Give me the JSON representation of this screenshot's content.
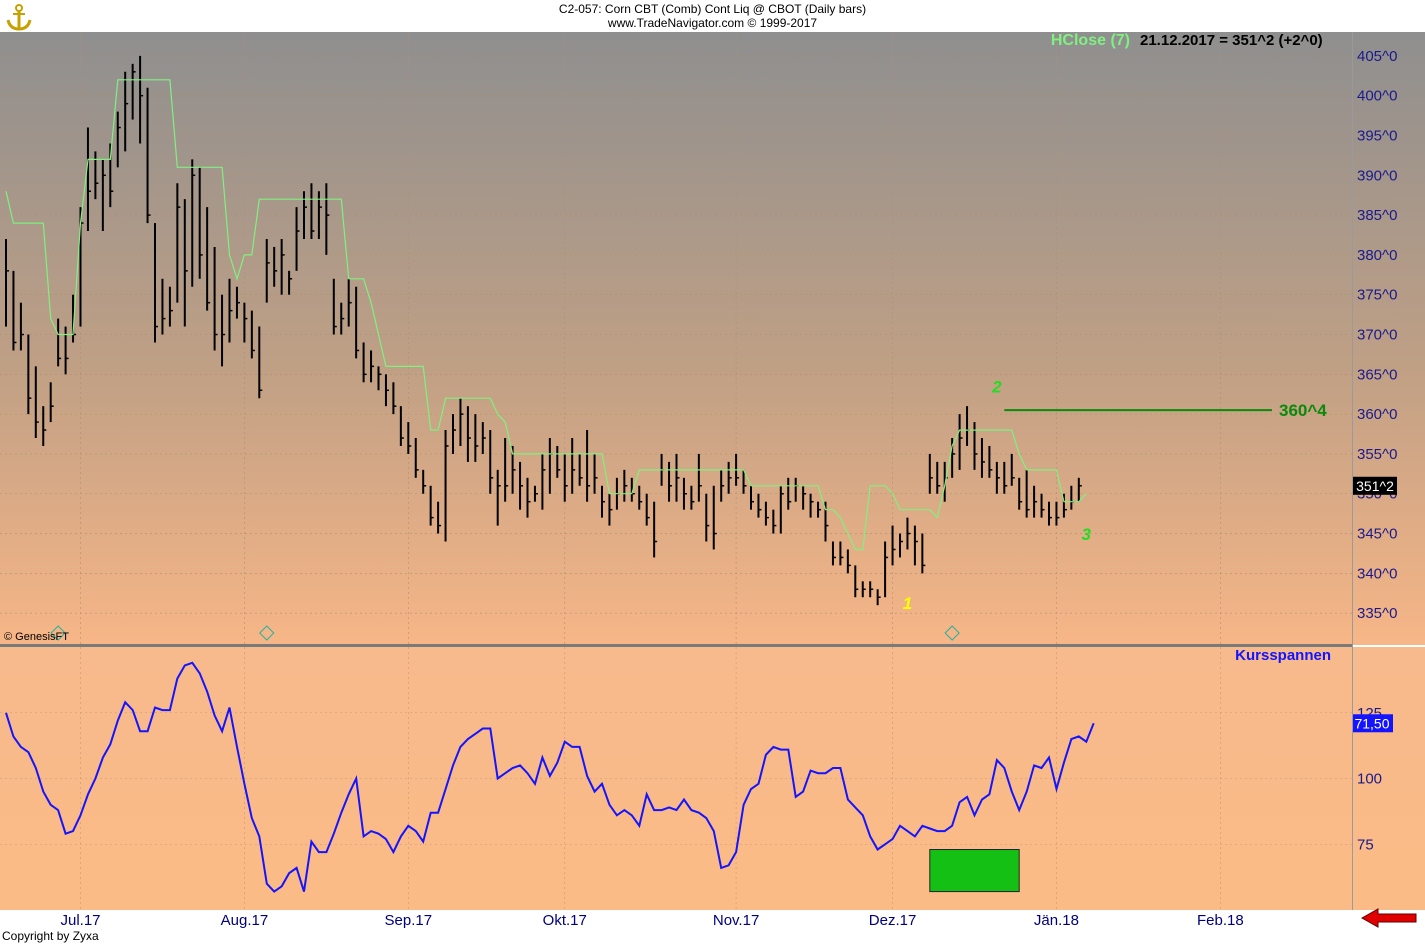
{
  "header": {
    "line1": "C2-057:  Corn CBT (Comb) Cont Liq @ CBOT  (Daily bars)",
    "line2": "www.TradeNavigator.com © 1999-2017"
  },
  "footer": {
    "copyright": "Copyright by Zyxa",
    "genesis": "© GenesisFT"
  },
  "colors": {
    "bar": "#000000",
    "hclose": "#80f080",
    "kurs": "#1414ff",
    "level": "#0a8a0a",
    "axisText": "#1a1a8c",
    "box": "#13c013"
  },
  "chart_data": [
    {
      "type": "ohlc-bar",
      "indicator_label": "HClose (7)",
      "indicator_value": "21.12.2017 = 351^2 (+2^0)",
      "ylim": [
        331,
        408
      ],
      "y_ticks": [
        "335^0",
        "340^0",
        "345^0",
        "350^0",
        "355^0",
        "360^0",
        "365^0",
        "370^0",
        "375^0",
        "380^0",
        "385^0",
        "390^0",
        "395^0",
        "400^0",
        "405^0"
      ],
      "last_price_label": "351^2",
      "level_label": "360^4",
      "level_value": 360.5,
      "level_from_day": 134,
      "wave_labels": [
        {
          "text": "1",
          "day": 121,
          "price": 335.5,
          "color": "#ffff00"
        },
        {
          "text": "2",
          "day": 133,
          "price": 362.7,
          "color": "#22dd22"
        },
        {
          "text": "3",
          "day": 145,
          "price": 344.2,
          "color": "#22dd22"
        }
      ],
      "roll_markers": [
        {
          "day": 7
        },
        {
          "day": 35
        },
        {
          "day": 127
        }
      ],
      "bars": [
        {
          "h": 382,
          "l": 371,
          "c": 378
        },
        {
          "h": 378,
          "l": 368,
          "c": 369
        },
        {
          "h": 374,
          "l": 368,
          "c": 370
        },
        {
          "h": 370,
          "l": 360,
          "c": 362
        },
        {
          "h": 366,
          "l": 357,
          "c": 359
        },
        {
          "h": 361,
          "l": 356,
          "c": 358
        },
        {
          "h": 364,
          "l": 359,
          "c": 361
        },
        {
          "h": 372,
          "l": 366,
          "c": 367
        },
        {
          "h": 371,
          "l": 365,
          "c": 367
        },
        {
          "h": 375,
          "l": 369,
          "c": 370
        },
        {
          "h": 386,
          "l": 371,
          "c": 384
        },
        {
          "h": 396,
          "l": 383,
          "c": 388
        },
        {
          "h": 393,
          "l": 387,
          "c": 389
        },
        {
          "h": 392,
          "l": 383,
          "c": 390
        },
        {
          "h": 394,
          "l": 386,
          "c": 388
        },
        {
          "h": 398,
          "l": 391,
          "c": 396
        },
        {
          "h": 403,
          "l": 393,
          "c": 399
        },
        {
          "h": 404,
          "l": 397,
          "c": 403
        },
        {
          "h": 405,
          "l": 394,
          "c": 400
        },
        {
          "h": 401,
          "l": 384,
          "c": 385
        },
        {
          "h": 384,
          "l": 369,
          "c": 371
        },
        {
          "h": 377,
          "l": 370,
          "c": 372
        },
        {
          "h": 376,
          "l": 371,
          "c": 373
        },
        {
          "h": 389,
          "l": 374,
          "c": 386
        },
        {
          "h": 387,
          "l": 371,
          "c": 378
        },
        {
          "h": 392,
          "l": 376,
          "c": 390
        },
        {
          "h": 391,
          "l": 377,
          "c": 380
        },
        {
          "h": 386,
          "l": 373,
          "c": 374
        },
        {
          "h": 381,
          "l": 368,
          "c": 370
        },
        {
          "h": 375,
          "l": 366,
          "c": 370
        },
        {
          "h": 377,
          "l": 369,
          "c": 373
        },
        {
          "h": 376,
          "l": 372,
          "c": 374
        },
        {
          "h": 374,
          "l": 369,
          "c": 372
        },
        {
          "h": 373,
          "l": 367,
          "c": 368
        },
        {
          "h": 371,
          "l": 362,
          "c": 363
        },
        {
          "h": 382,
          "l": 374,
          "c": 379
        },
        {
          "h": 381,
          "l": 376,
          "c": 378
        },
        {
          "h": 382,
          "l": 375,
          "c": 380
        },
        {
          "h": 378,
          "l": 375,
          "c": 377
        },
        {
          "h": 386,
          "l": 378,
          "c": 383
        },
        {
          "h": 388,
          "l": 382,
          "c": 386
        },
        {
          "h": 389,
          "l": 382,
          "c": 383
        },
        {
          "h": 388,
          "l": 382,
          "c": 386
        },
        {
          "h": 389,
          "l": 380,
          "c": 385
        },
        {
          "h": 377,
          "l": 370,
          "c": 371
        },
        {
          "h": 374,
          "l": 370,
          "c": 372
        },
        {
          "h": 377,
          "l": 371,
          "c": 374
        },
        {
          "h": 376,
          "l": 367,
          "c": 368
        },
        {
          "h": 369,
          "l": 364,
          "c": 365
        },
        {
          "h": 368,
          "l": 364,
          "c": 366
        },
        {
          "h": 366,
          "l": 363,
          "c": 365
        },
        {
          "h": 365,
          "l": 361,
          "c": 363
        },
        {
          "h": 364,
          "l": 360,
          "c": 361
        },
        {
          "h": 361,
          "l": 356,
          "c": 357
        },
        {
          "h": 359,
          "l": 355,
          "c": 356
        },
        {
          "h": 357,
          "l": 352,
          "c": 353
        },
        {
          "h": 353,
          "l": 350,
          "c": 351
        },
        {
          "h": 351,
          "l": 346,
          "c": 347
        },
        {
          "h": 349,
          "l": 345,
          "c": 346
        },
        {
          "h": 358,
          "l": 344,
          "c": 356
        },
        {
          "h": 360,
          "l": 355,
          "c": 358
        },
        {
          "h": 362,
          "l": 356,
          "c": 360
        },
        {
          "h": 361,
          "l": 354,
          "c": 357
        },
        {
          "h": 360,
          "l": 354,
          "c": 356
        },
        {
          "h": 359,
          "l": 355,
          "c": 357
        },
        {
          "h": 358,
          "l": 350,
          "c": 352
        },
        {
          "h": 353,
          "l": 346,
          "c": 351
        },
        {
          "h": 357,
          "l": 349,
          "c": 351
        },
        {
          "h": 356,
          "l": 350,
          "c": 353
        },
        {
          "h": 354,
          "l": 348,
          "c": 351
        },
        {
          "h": 352,
          "l": 347,
          "c": 349
        },
        {
          "h": 351,
          "l": 349,
          "c": 350
        },
        {
          "h": 355,
          "l": 348,
          "c": 353
        },
        {
          "h": 357,
          "l": 350,
          "c": 355
        },
        {
          "h": 356,
          "l": 352,
          "c": 353
        },
        {
          "h": 355,
          "l": 349,
          "c": 351
        },
        {
          "h": 357,
          "l": 350,
          "c": 353
        },
        {
          "h": 355,
          "l": 351,
          "c": 352
        },
        {
          "h": 358,
          "l": 349,
          "c": 351
        },
        {
          "h": 355,
          "l": 350,
          "c": 352
        },
        {
          "h": 351,
          "l": 347,
          "c": 349
        },
        {
          "h": 350,
          "l": 346,
          "c": 348
        },
        {
          "h": 352,
          "l": 348,
          "c": 350
        },
        {
          "h": 353,
          "l": 349,
          "c": 351
        },
        {
          "h": 352,
          "l": 349,
          "c": 350
        },
        {
          "h": 351,
          "l": 348,
          "c": 349
        },
        {
          "h": 350,
          "l": 346,
          "c": 347
        },
        {
          "h": 349,
          "l": 342,
          "c": 344
        },
        {
          "h": 355,
          "l": 351,
          "c": 353
        },
        {
          "h": 354,
          "l": 349,
          "c": 351
        },
        {
          "h": 355,
          "l": 349,
          "c": 352
        },
        {
          "h": 352,
          "l": 348,
          "c": 350
        },
        {
          "h": 351,
          "l": 348,
          "c": 349
        },
        {
          "h": 355,
          "l": 349,
          "c": 351
        },
        {
          "h": 350,
          "l": 344,
          "c": 346
        },
        {
          "h": 351,
          "l": 343,
          "c": 345
        },
        {
          "h": 353,
          "l": 349,
          "c": 351
        },
        {
          "h": 354,
          "l": 350,
          "c": 352
        },
        {
          "h": 355,
          "l": 351,
          "c": 352
        },
        {
          "h": 353,
          "l": 350,
          "c": 351
        },
        {
          "h": 351,
          "l": 348,
          "c": 349
        },
        {
          "h": 350,
          "l": 347,
          "c": 348
        },
        {
          "h": 349,
          "l": 346,
          "c": 347
        },
        {
          "h": 348,
          "l": 345,
          "c": 346
        },
        {
          "h": 351,
          "l": 345,
          "c": 350
        },
        {
          "h": 352,
          "l": 348,
          "c": 349
        },
        {
          "h": 352,
          "l": 349,
          "c": 351
        },
        {
          "h": 351,
          "l": 348,
          "c": 350
        },
        {
          "h": 350,
          "l": 347,
          "c": 349
        },
        {
          "h": 349,
          "l": 347,
          "c": 348
        },
        {
          "h": 349,
          "l": 344,
          "c": 346
        },
        {
          "h": 344,
          "l": 341,
          "c": 342
        },
        {
          "h": 344,
          "l": 341,
          "c": 342
        },
        {
          "h": 343,
          "l": 340,
          "c": 341
        },
        {
          "h": 341,
          "l": 337,
          "c": 338
        },
        {
          "h": 339,
          "l": 337,
          "c": 338
        },
        {
          "h": 339,
          "l": 337,
          "c": 338
        },
        {
          "h": 338,
          "l": 336,
          "c": 337
        },
        {
          "h": 344,
          "l": 337,
          "c": 342
        },
        {
          "h": 346,
          "l": 341,
          "c": 343
        },
        {
          "h": 345,
          "l": 342,
          "c": 344
        },
        {
          "h": 347,
          "l": 343,
          "c": 345
        },
        {
          "h": 346,
          "l": 341,
          "c": 344
        },
        {
          "h": 345,
          "l": 340,
          "c": 341
        },
        {
          "h": 355,
          "l": 350,
          "c": 352
        },
        {
          "h": 354,
          "l": 350,
          "c": 351
        },
        {
          "h": 354,
          "l": 349,
          "c": 352
        },
        {
          "h": 357,
          "l": 352,
          "c": 355
        },
        {
          "h": 360,
          "l": 353,
          "c": 357
        },
        {
          "h": 361,
          "l": 356,
          "c": 358
        },
        {
          "h": 359,
          "l": 353,
          "c": 355
        },
        {
          "h": 357,
          "l": 352,
          "c": 354
        },
        {
          "h": 356,
          "l": 352,
          "c": 353
        },
        {
          "h": 354,
          "l": 350,
          "c": 352
        },
        {
          "h": 354,
          "l": 350,
          "c": 351
        },
        {
          "h": 355,
          "l": 351,
          "c": 352
        },
        {
          "h": 352,
          "l": 348,
          "c": 349
        },
        {
          "h": 353,
          "l": 347,
          "c": 348
        },
        {
          "h": 351,
          "l": 347,
          "c": 349
        },
        {
          "h": 350,
          "l": 347,
          "c": 348
        },
        {
          "h": 349,
          "l": 346,
          "c": 347
        },
        {
          "h": 349,
          "l": 346,
          "c": 347
        },
        {
          "h": 350,
          "l": 347,
          "c": 348
        },
        {
          "h": 351,
          "l": 348,
          "c": 349
        },
        {
          "h": 352,
          "l": 349,
          "c": 351
        }
      ],
      "hclose": [
        388,
        384,
        384,
        384,
        384,
        384,
        372,
        370,
        370,
        370,
        384,
        392,
        392,
        392,
        392,
        402,
        402,
        402,
        402,
        402,
        402,
        402,
        402,
        391,
        391,
        391,
        391,
        391,
        391,
        391,
        380,
        377,
        380,
        380,
        387,
        387,
        387,
        387,
        387,
        387,
        387,
        387,
        387,
        387,
        387,
        387,
        377,
        377,
        377,
        374,
        370,
        366,
        366,
        366,
        366,
        366,
        366,
        358,
        358,
        362,
        362,
        362,
        362,
        362,
        362,
        362,
        360,
        359,
        355,
        355,
        355,
        355,
        355,
        355,
        355,
        355,
        355,
        355,
        355,
        355,
        355,
        350,
        350,
        350,
        350,
        353,
        353,
        353,
        353,
        353,
        353,
        353,
        353,
        353,
        353,
        353,
        353,
        353,
        353,
        353,
        351,
        351,
        351,
        351,
        351,
        351,
        351,
        351,
        351,
        351,
        348,
        348,
        347,
        345,
        343,
        343,
        351,
        351,
        351,
        350,
        348,
        348,
        348,
        348,
        348,
        347,
        351,
        356,
        358,
        358,
        358,
        358,
        358,
        358,
        358,
        358,
        355,
        353,
        353,
        353,
        353,
        353,
        349,
        349,
        349,
        350
      ],
      "x_labels": [
        {
          "text": "Jul.17",
          "day": 10
        },
        {
          "text": "Aug.17",
          "day": 32
        },
        {
          "text": "Sep.17",
          "day": 54
        },
        {
          "text": "Okt.17",
          "day": 75
        },
        {
          "text": "Nov.17",
          "day": 98
        },
        {
          "text": "Dez.17",
          "day": 119
        },
        {
          "text": "Jän.18",
          "day": 141
        },
        {
          "text": "Feb.18",
          "day": 163
        }
      ]
    },
    {
      "type": "line",
      "title": "Kursspannen",
      "ylim": [
        50,
        150
      ],
      "y_ticks": [
        "75",
        "100",
        "125"
      ],
      "last_value_label": "71,50",
      "box": {
        "day_from": 124,
        "day_to": 136,
        "y_from": 57,
        "y_to": 73
      },
      "values": [
        125,
        116,
        112,
        110,
        104,
        95,
        90,
        88,
        79,
        80,
        86,
        94,
        100,
        108,
        113,
        122,
        129,
        126,
        118,
        118,
        127,
        126,
        126,
        138,
        143,
        144,
        140,
        133,
        124,
        118,
        127,
        112,
        98,
        85,
        78,
        60,
        57,
        59,
        64,
        66,
        57,
        76,
        72,
        72,
        79,
        87,
        94,
        100,
        78,
        80,
        79,
        77,
        72,
        78,
        82,
        80,
        76,
        87,
        87,
        96,
        105,
        112,
        115,
        117,
        119,
        119,
        100,
        102,
        104,
        105,
        102,
        98,
        108,
        101,
        106,
        114,
        112,
        112,
        101,
        95,
        98,
        90,
        86,
        88,
        86,
        82,
        94,
        88,
        88,
        89,
        88,
        92,
        88,
        87,
        85,
        80,
        66,
        67,
        72,
        90,
        96,
        98,
        109,
        112,
        111,
        111,
        93,
        95,
        103,
        102,
        102,
        104,
        104,
        92,
        89,
        86,
        78,
        73,
        75,
        77,
        82,
        80,
        78,
        82,
        81,
        80,
        80,
        82,
        91,
        93,
        86,
        92,
        94,
        107,
        104,
        95,
        88,
        95,
        105,
        104,
        108,
        96,
        106,
        115,
        116,
        114,
        121
      ]
    }
  ]
}
